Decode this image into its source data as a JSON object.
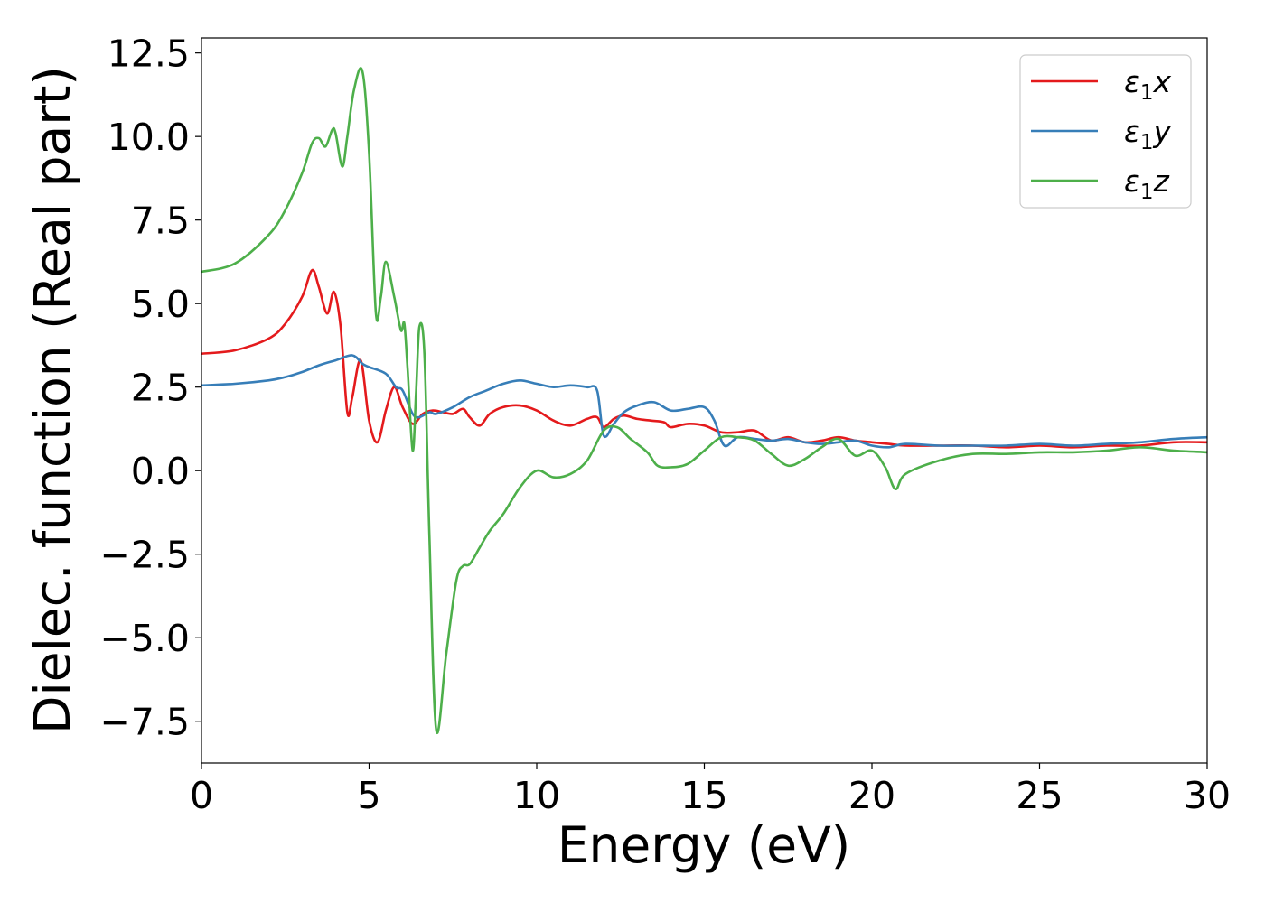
{
  "chart_data": {
    "type": "line",
    "title": "",
    "xlabel": "Energy (eV)",
    "ylabel": "Dielec. function (Real part)",
    "xlim": [
      0,
      30
    ],
    "ylim": [
      -8.75,
      12.95
    ],
    "xticks": [
      0,
      5,
      10,
      15,
      20,
      25,
      30
    ],
    "yticks": [
      -7.5,
      -5.0,
      -2.5,
      0.0,
      2.5,
      5.0,
      7.5,
      10.0,
      12.5
    ],
    "grid": false,
    "legend_position": "top-right",
    "series": [
      {
        "name": "ε₁x",
        "legend_main": "ε",
        "legend_sub": "1",
        "legend_axis": "x",
        "color": "#e41a1c",
        "x": [
          0,
          1,
          2,
          2.5,
          3.0,
          3.3,
          3.5,
          3.75,
          3.95,
          4.15,
          4.35,
          4.5,
          4.75,
          5.0,
          5.25,
          5.5,
          5.75,
          6.0,
          6.3,
          6.6,
          6.9,
          7.2,
          7.5,
          7.8,
          8.0,
          8.3,
          8.6,
          9.0,
          9.5,
          10.0,
          10.5,
          11.0,
          11.5,
          11.8,
          12.0,
          12.3,
          12.6,
          13.0,
          13.4,
          13.8,
          14.0,
          14.5,
          15.0,
          15.5,
          16.0,
          16.5,
          17.0,
          17.5,
          18.0,
          18.5,
          19.0,
          19.5,
          20.0,
          20.5,
          21.0,
          22.0,
          23.0,
          24.0,
          25.0,
          26.0,
          27.0,
          28.0,
          29.0,
          30.0
        ],
        "y": [
          3.5,
          3.6,
          3.95,
          4.4,
          5.2,
          6.0,
          5.5,
          4.7,
          5.35,
          4.3,
          1.75,
          2.2,
          3.3,
          1.5,
          0.85,
          1.8,
          2.5,
          1.9,
          1.4,
          1.7,
          1.8,
          1.75,
          1.7,
          1.85,
          1.6,
          1.35,
          1.7,
          1.9,
          1.95,
          1.8,
          1.5,
          1.35,
          1.55,
          1.6,
          1.3,
          1.55,
          1.65,
          1.55,
          1.5,
          1.45,
          1.3,
          1.4,
          1.35,
          1.15,
          1.15,
          1.2,
          0.9,
          1.0,
          0.85,
          0.9,
          1.0,
          0.9,
          0.85,
          0.8,
          0.75,
          0.75,
          0.75,
          0.7,
          0.75,
          0.7,
          0.75,
          0.75,
          0.85,
          0.85
        ]
      },
      {
        "name": "ε₁y",
        "legend_main": "ε",
        "legend_sub": "1",
        "legend_axis": "y",
        "color": "#377eb8",
        "x": [
          0,
          1,
          2,
          2.5,
          3.0,
          3.5,
          4.0,
          4.5,
          4.8,
          5.0,
          5.5,
          5.8,
          6.0,
          6.3,
          6.5,
          6.8,
          7.0,
          7.5,
          8.0,
          8.5,
          9.0,
          9.5,
          10.0,
          10.5,
          11.0,
          11.5,
          11.8,
          12.0,
          12.3,
          12.6,
          13.0,
          13.5,
          14.0,
          14.5,
          15.0,
          15.3,
          15.6,
          16.0,
          16.5,
          17.0,
          17.5,
          18.0,
          18.5,
          19.0,
          19.5,
          20.0,
          20.5,
          21.0,
          22.0,
          23.0,
          24.0,
          25.0,
          26.0,
          27.0,
          28.0,
          29.0,
          30.0
        ],
        "y": [
          2.55,
          2.6,
          2.7,
          2.8,
          2.95,
          3.15,
          3.3,
          3.45,
          3.2,
          3.1,
          2.9,
          2.5,
          2.4,
          1.7,
          1.6,
          1.75,
          1.7,
          1.9,
          2.2,
          2.4,
          2.6,
          2.7,
          2.6,
          2.5,
          2.55,
          2.5,
          2.4,
          1.05,
          1.4,
          1.75,
          1.95,
          2.05,
          1.8,
          1.85,
          1.9,
          1.5,
          0.75,
          1.0,
          0.95,
          0.9,
          0.95,
          0.85,
          0.8,
          0.85,
          0.9,
          0.75,
          0.7,
          0.8,
          0.75,
          0.75,
          0.75,
          0.8,
          0.75,
          0.8,
          0.85,
          0.95,
          1.0
        ]
      },
      {
        "name": "ε₁z",
        "legend_main": "ε",
        "legend_sub": "1",
        "legend_axis": "z",
        "color": "#4daf4a",
        "x": [
          0,
          1,
          2,
          2.5,
          3.0,
          3.3,
          3.5,
          3.7,
          3.9,
          4.0,
          4.2,
          4.35,
          4.55,
          4.8,
          5.0,
          5.2,
          5.35,
          5.5,
          5.75,
          5.95,
          6.05,
          6.15,
          6.3,
          6.4,
          6.5,
          6.65,
          6.8,
          7.0,
          7.3,
          7.6,
          7.8,
          8.0,
          8.3,
          8.6,
          9.0,
          9.5,
          10.0,
          10.5,
          11.0,
          11.5,
          12.0,
          12.4,
          12.8,
          13.3,
          13.6,
          14.0,
          14.5,
          15.0,
          15.5,
          16.0,
          16.5,
          17.0,
          17.5,
          18.0,
          18.5,
          19.0,
          19.5,
          20.0,
          20.4,
          20.7,
          21.0,
          22.0,
          23.0,
          24.0,
          25.0,
          26.0,
          27.0,
          28.0,
          29.0,
          30.0
        ],
        "y": [
          5.95,
          6.2,
          7.05,
          7.8,
          8.9,
          9.8,
          9.95,
          9.7,
          10.2,
          10.1,
          9.1,
          10.0,
          11.4,
          11.95,
          9.5,
          4.75,
          5.2,
          6.25,
          5.2,
          4.2,
          4.4,
          3.0,
          0.6,
          2.3,
          4.3,
          3.5,
          -2.0,
          -7.75,
          -5.5,
          -3.3,
          -2.85,
          -2.8,
          -2.3,
          -1.8,
          -1.3,
          -0.5,
          0.0,
          -0.2,
          -0.1,
          0.3,
          1.2,
          1.3,
          0.95,
          0.55,
          0.15,
          0.1,
          0.2,
          0.6,
          1.0,
          1.0,
          0.9,
          0.5,
          0.15,
          0.35,
          0.7,
          0.95,
          0.45,
          0.6,
          0.1,
          -0.55,
          -0.1,
          0.3,
          0.5,
          0.5,
          0.55,
          0.55,
          0.6,
          0.7,
          0.6,
          0.55
        ]
      }
    ]
  }
}
